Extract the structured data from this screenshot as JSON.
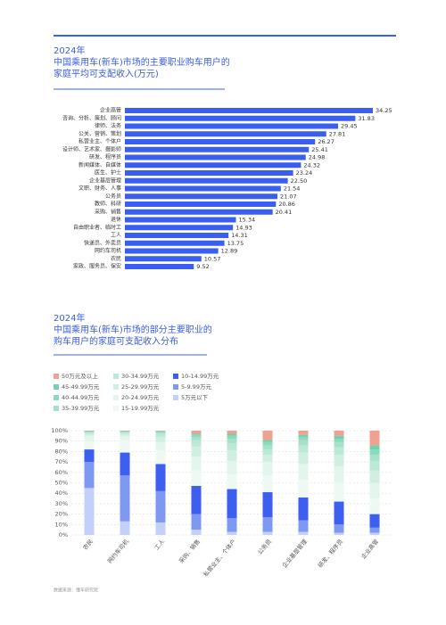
{
  "chart_data": [
    {
      "type": "hbar",
      "title": [
        "2024年",
        "中国乘用车(新车)市场的主要职业购车用户的",
        "家庭平均可支配收入(万元)"
      ],
      "categories": [
        "企业高管",
        "咨询、分析、策划、顾问",
        "律师、法务",
        "公关、营销、策划",
        "私营业主、个体户",
        "设计师、艺术家、摄影师",
        "研发、程序员",
        "新闻媒体、自媒体",
        "医生、护士",
        "企业基层管理",
        "文职、财务、人事",
        "公务员",
        "教师、科研",
        "采购、销售",
        "退休",
        "自由职业者、临时工",
        "工人",
        "快递员、外卖员",
        "网约车司机",
        "农民",
        "家政、服务员、保安"
      ],
      "values": [
        34.25,
        31.83,
        29.45,
        27.81,
        26.27,
        25.41,
        24.98,
        24.32,
        23.24,
        22.5,
        21.54,
        21.07,
        20.86,
        20.41,
        15.34,
        14.93,
        14.31,
        13.75,
        12.89,
        10.57,
        9.52
      ],
      "value_labels": [
        "34.25",
        "31.83",
        "29.45",
        "27.81",
        "26.27",
        "25.41",
        "24.98",
        "24.32",
        "23.24",
        "22.50",
        "21.54",
        "21.07",
        "20.86",
        "20.41",
        "15.34",
        "14.93",
        "14.31",
        "13.75",
        "12.89",
        "10.57",
        "9.52"
      ],
      "color": "#3a5ff0"
    },
    {
      "type": "stacked-bar",
      "title": [
        "2024年",
        "中国乘用车(新车)市场的部分主要职业的",
        "购车用户的家庭可支配收入分布"
      ],
      "categories": [
        "农民",
        "网约车司机",
        "工人",
        "采购、销售",
        "私营业主、个体户",
        "公务员",
        "企业基层管理",
        "研发、程序员",
        "企业高管"
      ],
      "ylim": [
        0,
        100
      ],
      "yticks": [
        {
          "value": 0,
          "label": "0%"
        },
        {
          "value": 10,
          "label": "10%"
        },
        {
          "value": 20,
          "label": "20%"
        },
        {
          "value": 30,
          "label": "30%"
        },
        {
          "value": 40,
          "label": "40%"
        },
        {
          "value": 50,
          "label": "50%"
        },
        {
          "value": 60,
          "label": "60%"
        },
        {
          "value": 70,
          "label": "70%"
        },
        {
          "value": 80,
          "label": "80%"
        },
        {
          "value": 90,
          "label": "90%"
        },
        {
          "value": 100,
          "label": "100%"
        }
      ],
      "grid": true,
      "series": [
        {
          "name": "5万元以下",
          "color": "#c3d1fa",
          "values": [
            45,
            13,
            12,
            5,
            3,
            3,
            3,
            2,
            2
          ]
        },
        {
          "name": "5-9.99万元",
          "color": "#7f98f2",
          "values": [
            25,
            44,
            30,
            15,
            13,
            14,
            11,
            8,
            5
          ]
        },
        {
          "name": "10-14.99万元",
          "color": "#3c5ff0",
          "values": [
            12,
            22,
            26,
            27,
            28,
            24,
            22,
            22,
            13
          ]
        },
        {
          "name": "15-19.99万元",
          "color": "#eef9f4",
          "values": [
            8,
            12,
            13,
            15,
            14,
            16,
            17,
            18,
            15
          ]
        },
        {
          "name": "20-24.99万元",
          "color": "#e2f6ed",
          "values": [
            5,
            4,
            8,
            13,
            13,
            13,
            15,
            16,
            15
          ]
        },
        {
          "name": "25-29.99万元",
          "color": "#cfefe1",
          "values": [
            2,
            2,
            5,
            10,
            10,
            7,
            11,
            11,
            12
          ]
        },
        {
          "name": "30-34.99万元",
          "color": "#bbe9d5",
          "values": [
            1,
            1,
            3,
            6,
            7,
            5,
            7,
            7,
            9
          ]
        },
        {
          "name": "35-39.99万元",
          "color": "#a5e2c9",
          "values": [
            0.5,
            0.5,
            1,
            3,
            4,
            4,
            5,
            5,
            6
          ]
        },
        {
          "name": "40-44.99万元",
          "color": "#8bdabc",
          "values": [
            0.5,
            0.5,
            1,
            2,
            3,
            3,
            3,
            3,
            5
          ]
        },
        {
          "name": "45-49.99万元",
          "color": "#70d3ae",
          "values": [
            0.5,
            0.5,
            0.5,
            1,
            2,
            2,
            2,
            3,
            4
          ]
        },
        {
          "name": "50万元及以上",
          "color": "#f2a08f",
          "values": [
            0.5,
            0.5,
            0.5,
            3,
            3,
            9,
            4,
            5,
            14
          ]
        }
      ]
    }
  ],
  "source": "数据来源：懂车研究院"
}
